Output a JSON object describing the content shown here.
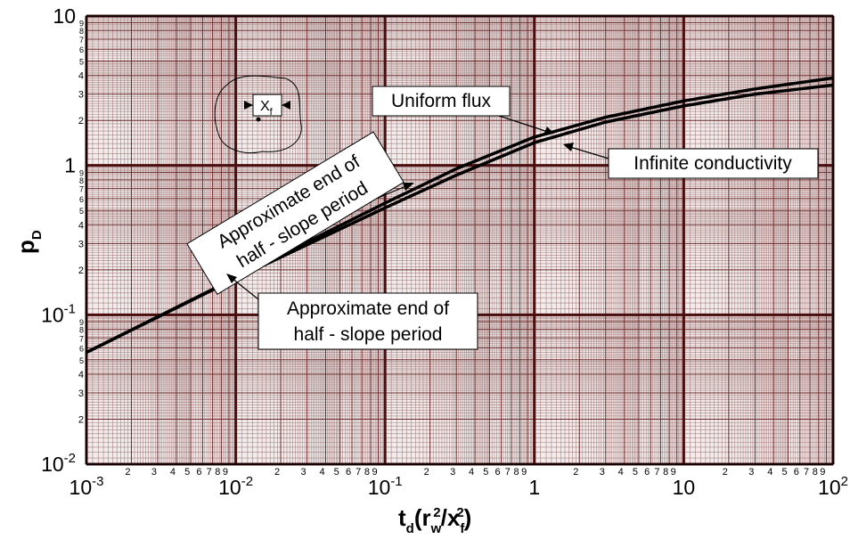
{
  "chart_data": {
    "type": "line",
    "xscale": "log",
    "yscale": "log",
    "grid": true,
    "xlabel": [
      {
        "text": "t",
        "role": "base"
      },
      {
        "text": "d",
        "role": "sub"
      },
      {
        "text": "(r",
        "role": "base"
      },
      {
        "text": "w",
        "role": "sub"
      },
      {
        "text": "2",
        "role": "sup"
      },
      {
        "text": "/x",
        "role": "base"
      },
      {
        "text": "f",
        "role": "sub"
      },
      {
        "text": "2",
        "role": "sup"
      },
      {
        "text": ")",
        "role": "base"
      }
    ],
    "ylabel": [
      {
        "text": "p",
        "role": "base"
      },
      {
        "text": "D",
        "role": "sub"
      }
    ],
    "xlim": [
      0.001,
      100
    ],
    "ylim": [
      0.01,
      10
    ],
    "xticks": [
      {
        "value": 0.001,
        "label": "10",
        "power": "-3"
      },
      {
        "value": 0.01,
        "label": "10",
        "power": "-2"
      },
      {
        "value": 0.1,
        "label": "10",
        "power": "-1"
      },
      1,
      10,
      {
        "value": 100,
        "label": "10",
        "power": "2"
      }
    ],
    "yticks": [
      {
        "value": 0.01,
        "label": "10",
        "power": "-2"
      },
      {
        "value": 0.1,
        "label": "10",
        "power": "-1"
      },
      1,
      10
    ],
    "minor_tick_digits": [
      2,
      3,
      4,
      5,
      6,
      7,
      8,
      9
    ],
    "x": [
      0.001,
      0.01,
      0.1,
      0.3,
      1,
      3,
      10,
      30,
      100
    ],
    "series": [
      {
        "name": "Uniform flux",
        "color": "#000000",
        "values": [
          0.056,
          0.177,
          0.56,
          0.95,
          1.55,
          2.1,
          2.7,
          3.25,
          3.85
        ]
      },
      {
        "name": "Infinite conductivity",
        "color": "#000000",
        "values": [
          0.056,
          0.175,
          0.52,
          0.86,
          1.42,
          1.95,
          2.5,
          3.0,
          3.45
        ]
      }
    ],
    "annotations": [
      {
        "lines": [
          "Approximate end of",
          "half - slope period"
        ]
      },
      {
        "lines": [
          "Approximate end of",
          "half - slope period"
        ]
      }
    ],
    "inset_label": {
      "main": "X",
      "sub": "f"
    }
  }
}
